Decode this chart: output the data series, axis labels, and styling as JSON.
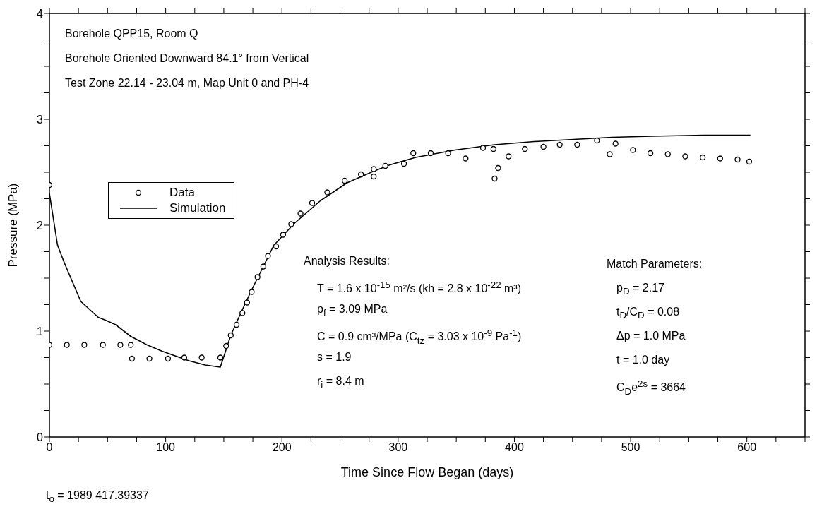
{
  "chart_data": {
    "type": "scatter",
    "xlabel": "Time Since Flow Began (days)",
    "ylabel": "Pressure (MPa)",
    "xlim": [
      0,
      650
    ],
    "xticks": [
      0,
      {
        "value": 25,
        "label": null
      },
      {
        "value": 50,
        "label": null
      },
      {
        "value": 75,
        "label": null
      },
      100,
      {
        "value": 125,
        "label": null
      },
      {
        "value": 150,
        "label": null
      },
      {
        "value": 175,
        "label": null
      },
      200,
      {
        "value": 225,
        "label": null
      },
      {
        "value": 250,
        "label": null
      },
      {
        "value": 275,
        "label": null
      },
      300,
      {
        "value": 325,
        "label": null
      },
      {
        "value": 350,
        "label": null
      },
      {
        "value": 375,
        "label": null
      },
      400,
      {
        "value": 425,
        "label": null
      },
      {
        "value": 450,
        "label": null
      },
      {
        "value": 475,
        "label": null
      },
      500,
      {
        "value": 525,
        "label": null
      },
      {
        "value": 550,
        "label": null
      },
      {
        "value": 575,
        "label": null
      },
      600,
      {
        "value": 625,
        "label": null
      },
      {
        "value": 650,
        "label": null
      }
    ],
    "ylim": [
      0,
      4
    ],
    "yticks": [
      0,
      {
        "value": 0.25,
        "label": null
      },
      {
        "value": 0.5,
        "label": null
      },
      {
        "value": 0.75,
        "label": null
      },
      1,
      {
        "value": 1.25,
        "label": null
      },
      {
        "value": 1.5,
        "label": null
      },
      {
        "value": 1.75,
        "label": null
      },
      2,
      {
        "value": 2.25,
        "label": null
      },
      {
        "value": 2.5,
        "label": null
      },
      {
        "value": 2.75,
        "label": null
      },
      3,
      {
        "value": 3.25,
        "label": null
      },
      {
        "value": 3.5,
        "label": null
      },
      {
        "value": 3.75,
        "label": null
      },
      4
    ],
    "legend": "left",
    "series": [
      {
        "name": "Data",
        "marker": "circle",
        "color": "#000000",
        "x": [
          0,
          0,
          15,
          30,
          46,
          61,
          70,
          71,
          86,
          102,
          116,
          131,
          147,
          152,
          156,
          161,
          166,
          170,
          174,
          179,
          184,
          188,
          195,
          201,
          208,
          216,
          226,
          239,
          254,
          268,
          279,
          279,
          289,
          305,
          313,
          328,
          343,
          358,
          373,
          382,
          386,
          383,
          395,
          409,
          425,
          439,
          454,
          471,
          482,
          487,
          502,
          517,
          532,
          547,
          562,
          577,
          592,
          602
        ],
        "values": [
          2.38,
          0.87,
          0.87,
          0.87,
          0.87,
          0.87,
          0.87,
          0.74,
          0.74,
          0.74,
          0.75,
          0.75,
          0.75,
          0.86,
          0.96,
          1.06,
          1.17,
          1.27,
          1.37,
          1.51,
          1.61,
          1.71,
          1.8,
          1.91,
          2.01,
          2.11,
          2.21,
          2.31,
          2.42,
          2.48,
          2.53,
          2.46,
          2.56,
          2.58,
          2.68,
          2.68,
          2.68,
          2.63,
          2.73,
          2.72,
          2.54,
          2.44,
          2.65,
          2.72,
          2.74,
          2.76,
          2.76,
          2.8,
          2.67,
          2.77,
          2.71,
          2.68,
          2.67,
          2.65,
          2.64,
          2.63,
          2.62,
          2.6
        ]
      },
      {
        "name": "Simulation",
        "type": "line",
        "marker": "none",
        "line_style": "solid",
        "color": "#000000",
        "x": [
          0,
          7,
          13,
          27,
          42,
          49,
          57,
          70,
          84,
          97,
          120,
          134,
          147,
          156,
          165,
          174,
          184,
          193,
          211,
          233,
          256,
          279,
          293,
          315,
          349,
          383,
          417,
          451,
          484,
          518,
          563,
          603
        ],
        "values": [
          2.3,
          1.81,
          1.64,
          1.28,
          1.13,
          1.1,
          1.06,
          0.95,
          0.87,
          0.81,
          0.72,
          0.68,
          0.66,
          0.96,
          1.18,
          1.39,
          1.61,
          1.81,
          2.02,
          2.23,
          2.4,
          2.51,
          2.57,
          2.64,
          2.71,
          2.76,
          2.79,
          2.81,
          2.83,
          2.84,
          2.85,
          2.85
        ]
      }
    ],
    "annotations": [
      "Borehole QPP15, Room Q",
      "Borehole Oriented Downward 84.1° from Vertical",
      "Test Zone 22.14 - 23.04 m, Map Unit 0 and PH-4",
      "Analysis Results:",
      "T = 1.6 x 10$^{-15}$ m²/s (kh = 2.8 x 10$^{-22}$ m³)",
      "p$_{f}$ = 3.09 MPa",
      "C = 0.9 cm³/MPa (C$_{tz}$ = 3.03 x 10$^{-9}$ Pa$^{-1}$)",
      "s = 1.9",
      "r$_{i}$ = 8.4 m",
      "Match Parameters:",
      "p$_{D}$ = 2.17",
      "t$_{D}$/C$_{D}$ = 0.08",
      "Δp = 1.0 MPa",
      "t = 1.0 day",
      "C$_{D}$e$^{2s}$ = 3664",
      "t$_{o}$ = 1989  417.39337"
    ]
  }
}
